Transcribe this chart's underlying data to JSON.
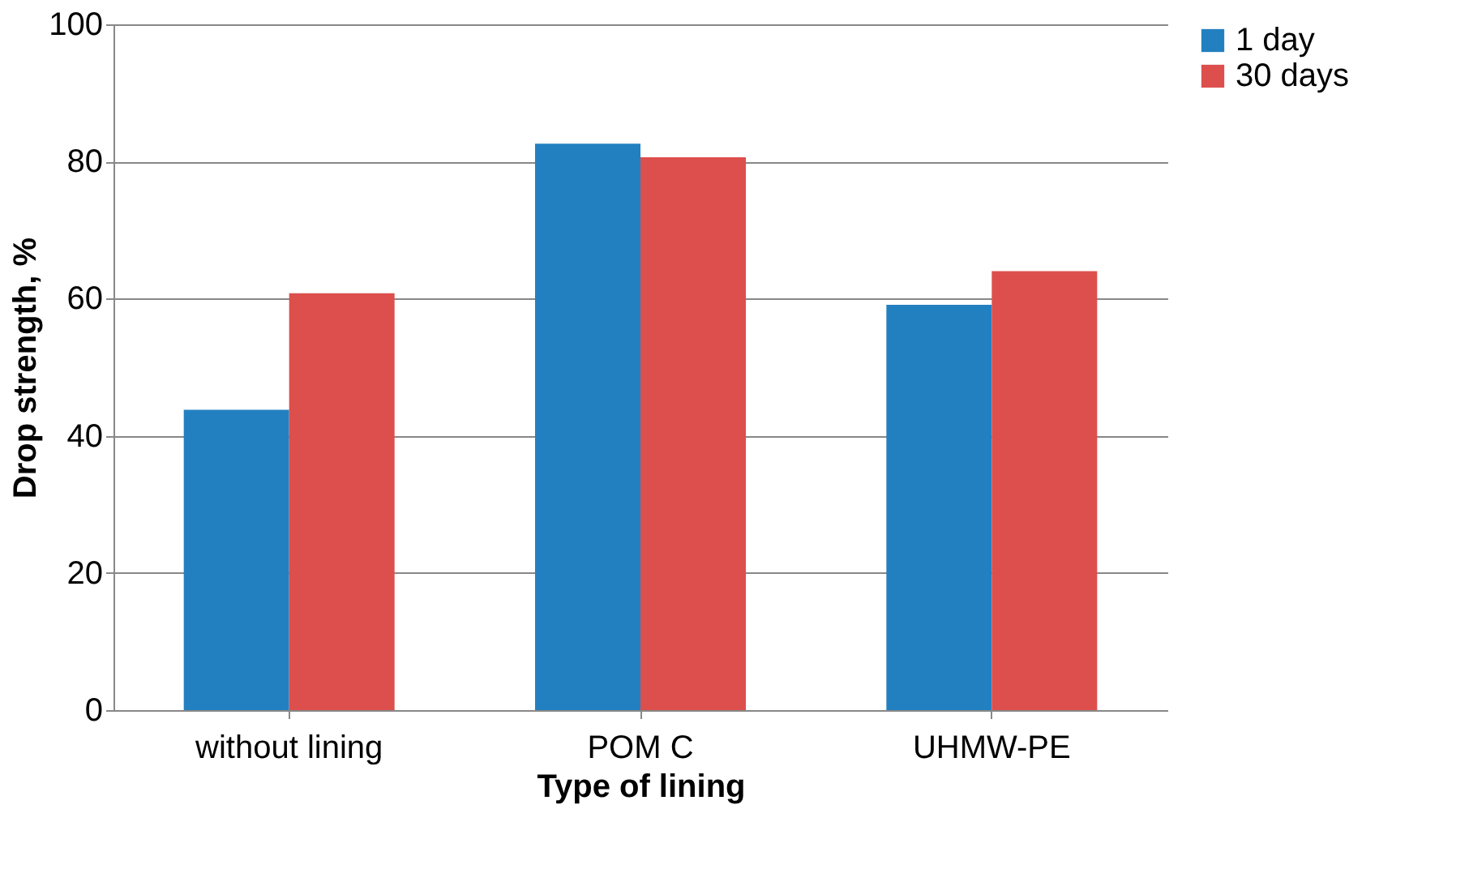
{
  "chart_data": {
    "type": "bar",
    "xlabel": "Type of lining",
    "ylabel": "Drop strength, %",
    "categories": [
      "without lining",
      "POM C",
      "UHMW-PE"
    ],
    "series": [
      {
        "name": "1 day",
        "color": "#2280c1",
        "values": [
          43.8,
          82.6,
          59.1
        ]
      },
      {
        "name": "30 days",
        "color": "#dc4f4d",
        "values": [
          60.8,
          80.6,
          64.0
        ]
      }
    ],
    "ylim": [
      0,
      100
    ],
    "yticks": [
      0,
      20,
      40,
      60,
      80,
      100
    ],
    "grid": "y",
    "legend": "right"
  }
}
